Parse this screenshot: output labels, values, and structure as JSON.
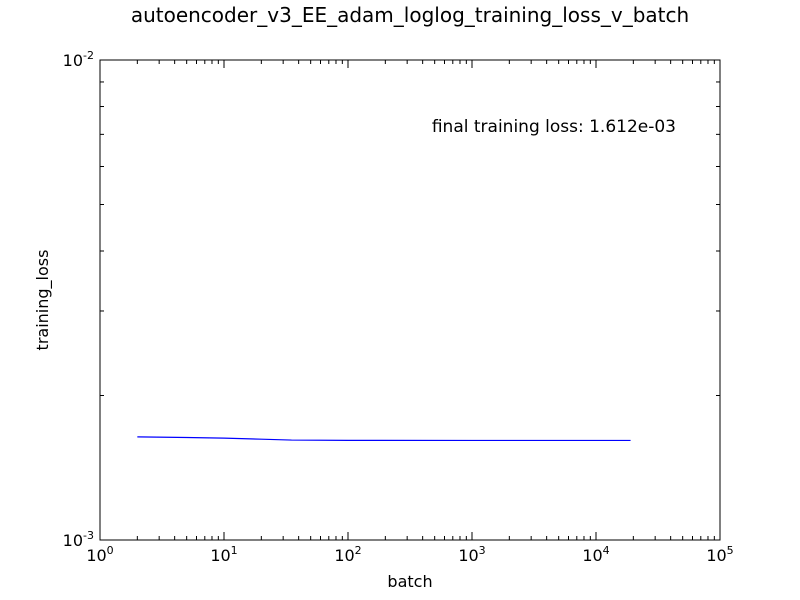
{
  "chart_data": {
    "type": "line",
    "title": "autoencoder_v3_EE_adam_loglog_training_loss_v_batch",
    "xlabel": "batch",
    "ylabel": "training_loss",
    "xscale": "log",
    "yscale": "log",
    "xlim": [
      1,
      100000
    ],
    "ylim": [
      0.001,
      0.01
    ],
    "grid": false,
    "annotation": "final training loss: 1.612e-03",
    "x_ticks": [
      {
        "base": "10",
        "exp": "0",
        "value": 1
      },
      {
        "base": "10",
        "exp": "1",
        "value": 10
      },
      {
        "base": "10",
        "exp": "2",
        "value": 100
      },
      {
        "base": "10",
        "exp": "3",
        "value": 1000
      },
      {
        "base": "10",
        "exp": "4",
        "value": 10000
      },
      {
        "base": "10",
        "exp": "5",
        "value": 100000
      }
    ],
    "y_ticks": [
      {
        "base": "10",
        "exp": "-3",
        "value": 0.001
      },
      {
        "base": "10",
        "exp": "-2",
        "value": 0.01
      }
    ],
    "series": [
      {
        "color": "#0000ff",
        "x": [
          2,
          5,
          10,
          20,
          35,
          100,
          1000,
          10000,
          19000
        ],
        "y": [
          0.00164,
          0.001635,
          0.00163,
          0.001622,
          0.001615,
          0.001613,
          0.001612,
          0.001612,
          0.001612
        ]
      }
    ]
  }
}
